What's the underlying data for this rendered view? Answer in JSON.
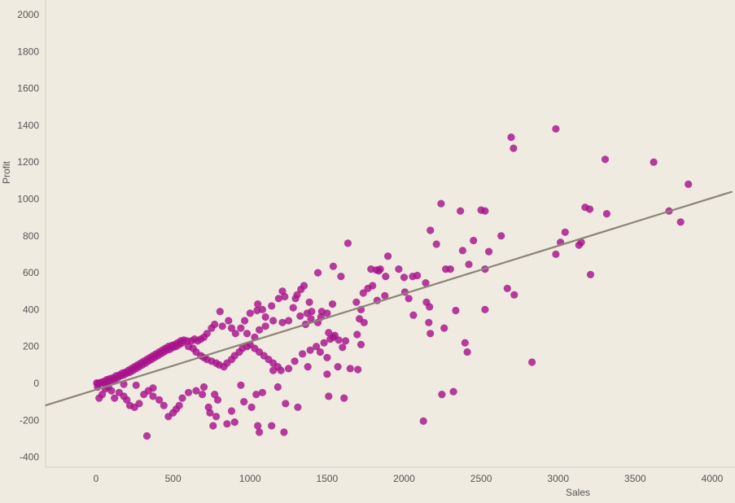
{
  "chart_data": {
    "type": "scatter",
    "title": "",
    "xlabel": "Sales",
    "ylabel": "Profit",
    "xlim": [
      -330,
      4130
    ],
    "ylim": [
      -440,
      2060
    ],
    "x_ticks": [
      0,
      500,
      1000,
      1500,
      2000,
      2500,
      3000,
      3500,
      4000
    ],
    "y_ticks": [
      -400,
      -200,
      0,
      200,
      400,
      600,
      800,
      1000,
      1200,
      1400,
      1600,
      1800,
      2000
    ],
    "grid": false,
    "legend": "none",
    "colors": {
      "background": "#efebe0",
      "point": "#a8128b",
      "trend_line": "#8a8577",
      "axis_line": "#d4d0c4",
      "text": "#555555"
    },
    "trend_line": {
      "x": [
        -330,
        4130
      ],
      "y": [
        -120,
        1040
      ]
    },
    "cluster_note_hidden": true,
    "series": [
      {
        "points": [
          [
            2985,
            1380
          ],
          [
            2695,
            1335
          ],
          [
            2710,
            1275
          ],
          [
            3305,
            1215
          ],
          [
            3620,
            1200
          ],
          [
            3845,
            1080
          ],
          [
            2240,
            975
          ],
          [
            2365,
            935
          ],
          [
            2500,
            940
          ],
          [
            2525,
            935
          ],
          [
            3175,
            955
          ],
          [
            3205,
            945
          ],
          [
            3315,
            920
          ],
          [
            3720,
            935
          ],
          [
            3795,
            875
          ],
          [
            2170,
            830
          ],
          [
            2630,
            800
          ],
          [
            3045,
            820
          ],
          [
            3015,
            765
          ],
          [
            3135,
            750
          ],
          [
            3150,
            765
          ],
          [
            2985,
            700
          ],
          [
            1635,
            760
          ],
          [
            2210,
            755
          ],
          [
            2450,
            775
          ],
          [
            2380,
            720
          ],
          [
            2550,
            715
          ],
          [
            1895,
            690
          ],
          [
            2270,
            620
          ],
          [
            2300,
            620
          ],
          [
            2525,
            620
          ],
          [
            2420,
            645
          ],
          [
            1540,
            635
          ],
          [
            1785,
            620
          ],
          [
            1820,
            615
          ],
          [
            1845,
            620
          ],
          [
            1835,
            610
          ],
          [
            1965,
            620
          ],
          [
            3210,
            590
          ],
          [
            2055,
            580
          ],
          [
            2085,
            585
          ],
          [
            2000,
            575
          ],
          [
            1880,
            580
          ],
          [
            2670,
            515
          ],
          [
            2715,
            480
          ],
          [
            1440,
            600
          ],
          [
            1590,
            580
          ],
          [
            2140,
            545
          ],
          [
            1735,
            490
          ],
          [
            1765,
            515
          ],
          [
            1795,
            530
          ],
          [
            2005,
            495
          ],
          [
            1690,
            440
          ],
          [
            1720,
            400
          ],
          [
            1825,
            450
          ],
          [
            1875,
            475
          ],
          [
            2030,
            460
          ],
          [
            2145,
            440
          ],
          [
            2165,
            415
          ],
          [
            2525,
            400
          ],
          [
            2335,
            395
          ],
          [
            2060,
            370
          ],
          [
            2160,
            330
          ],
          [
            2170,
            270
          ],
          [
            2260,
            300
          ],
          [
            1460,
            360
          ],
          [
            1500,
            380
          ],
          [
            1535,
            430
          ],
          [
            1465,
            390
          ],
          [
            1710,
            350
          ],
          [
            1740,
            330
          ],
          [
            1620,
            230
          ],
          [
            1540,
            250
          ],
          [
            1550,
            260
          ],
          [
            1510,
            275
          ],
          [
            1440,
            330
          ],
          [
            1370,
            380
          ],
          [
            1400,
            390
          ],
          [
            1385,
            440
          ],
          [
            1330,
            510
          ],
          [
            1350,
            530
          ],
          [
            1305,
            480
          ],
          [
            1295,
            460
          ],
          [
            1280,
            410
          ],
          [
            1225,
            470
          ],
          [
            1210,
            500
          ],
          [
            1185,
            460
          ],
          [
            1140,
            420
          ],
          [
            1080,
            400
          ],
          [
            1100,
            360
          ],
          [
            1050,
            430
          ],
          [
            1045,
            395
          ],
          [
            1000,
            380
          ],
          [
            965,
            340
          ],
          [
            1325,
            365
          ],
          [
            1360,
            320
          ],
          [
            1395,
            350
          ],
          [
            1250,
            340
          ],
          [
            1210,
            330
          ],
          [
            1150,
            340
          ],
          [
            1100,
            310
          ],
          [
            1060,
            290
          ],
          [
            1030,
            250
          ],
          [
            980,
            270
          ],
          [
            940,
            300
          ],
          [
            905,
            270
          ],
          [
            880,
            300
          ],
          [
            860,
            340
          ],
          [
            820,
            310
          ],
          [
            805,
            390
          ],
          [
            770,
            320
          ],
          [
            750,
            300
          ],
          [
            720,
            270
          ],
          [
            700,
            250
          ],
          [
            680,
            240
          ],
          [
            660,
            230
          ],
          [
            640,
            240
          ],
          [
            620,
            230
          ],
          [
            590,
            230
          ],
          [
            560,
            220
          ],
          [
            540,
            210
          ],
          [
            520,
            200
          ],
          [
            500,
            195
          ],
          [
            480,
            185
          ],
          [
            460,
            180
          ],
          [
            440,
            170
          ],
          [
            420,
            160
          ],
          [
            400,
            150
          ],
          [
            380,
            140
          ],
          [
            360,
            130
          ],
          [
            340,
            120
          ],
          [
            320,
            110
          ],
          [
            300,
            100
          ],
          [
            280,
            90
          ],
          [
            260,
            80
          ],
          [
            240,
            70
          ],
          [
            220,
            60
          ],
          [
            200,
            55
          ],
          [
            180,
            45
          ],
          [
            160,
            40
          ],
          [
            140,
            30
          ],
          [
            120,
            20
          ],
          [
            100,
            15
          ],
          [
            80,
            10
          ],
          [
            60,
            5
          ],
          [
            40,
            3
          ],
          [
            20,
            0
          ],
          [
            10,
            -2
          ],
          [
            5,
            2
          ],
          [
            30,
            5
          ],
          [
            50,
            10
          ],
          [
            70,
            20
          ],
          [
            90,
            25
          ],
          [
            110,
            30
          ],
          [
            130,
            40
          ],
          [
            150,
            45
          ],
          [
            170,
            55
          ],
          [
            190,
            60
          ],
          [
            210,
            70
          ],
          [
            230,
            80
          ],
          [
            250,
            90
          ],
          [
            270,
            100
          ],
          [
            290,
            110
          ],
          [
            310,
            120
          ],
          [
            330,
            130
          ],
          [
            350,
            140
          ],
          [
            370,
            150
          ],
          [
            390,
            160
          ],
          [
            410,
            170
          ],
          [
            430,
            180
          ],
          [
            450,
            190
          ],
          [
            470,
            200
          ],
          [
            490,
            205
          ],
          [
            510,
            210
          ],
          [
            530,
            220
          ],
          [
            550,
            230
          ],
          [
            570,
            235
          ],
          [
            600,
            200
          ],
          [
            630,
            190
          ],
          [
            650,
            170
          ],
          [
            680,
            150
          ],
          [
            700,
            140
          ],
          [
            720,
            130
          ],
          [
            750,
            120
          ],
          [
            780,
            110
          ],
          [
            800,
            100
          ],
          [
            830,
            90
          ],
          [
            850,
            110
          ],
          [
            880,
            130
          ],
          [
            900,
            150
          ],
          [
            930,
            170
          ],
          [
            950,
            190
          ],
          [
            980,
            200
          ],
          [
            1000,
            210
          ],
          [
            1030,
            190
          ],
          [
            1060,
            170
          ],
          [
            1090,
            150
          ],
          [
            1120,
            130
          ],
          [
            1150,
            110
          ],
          [
            1180,
            90
          ],
          [
            1200,
            70
          ],
          [
            1250,
            80
          ],
          [
            1290,
            120
          ],
          [
            1340,
            160
          ],
          [
            1390,
            180
          ],
          [
            1430,
            200
          ],
          [
            1480,
            220
          ],
          [
            1520,
            240
          ],
          [
            1575,
            235
          ],
          [
            1695,
            265
          ],
          [
            1720,
            210
          ],
          [
            1600,
            195
          ],
          [
            1455,
            170
          ],
          [
            1500,
            140
          ],
          [
            1570,
            90
          ],
          [
            1500,
            50
          ],
          [
            1650,
            80
          ],
          [
            1700,
            75
          ],
          [
            1510,
            -70
          ],
          [
            1610,
            -80
          ],
          [
            1375,
            90
          ],
          [
            1310,
            -130
          ],
          [
            1230,
            -110
          ],
          [
            1180,
            -20
          ],
          [
            1150,
            70
          ],
          [
            1080,
            -50
          ],
          [
            1040,
            -60
          ],
          [
            1010,
            -130
          ],
          [
            1050,
            -230
          ],
          [
            1060,
            -265
          ],
          [
            1220,
            -265
          ],
          [
            940,
            -10
          ],
          [
            960,
            -100
          ],
          [
            880,
            -150
          ],
          [
            850,
            -220
          ],
          [
            790,
            -90
          ],
          [
            770,
            -60
          ],
          [
            730,
            -130
          ],
          [
            740,
            -160
          ],
          [
            780,
            -180
          ],
          [
            700,
            -20
          ],
          [
            690,
            -60
          ],
          [
            650,
            -40
          ],
          [
            600,
            -50
          ],
          [
            560,
            -80
          ],
          [
            540,
            -120
          ],
          [
            520,
            -140
          ],
          [
            500,
            -160
          ],
          [
            470,
            -180
          ],
          [
            440,
            -120
          ],
          [
            410,
            -90
          ],
          [
            370,
            -70
          ],
          [
            340,
            -40
          ],
          [
            310,
            -60
          ],
          [
            280,
            -110
          ],
          [
            250,
            -130
          ],
          [
            220,
            -120
          ],
          [
            200,
            -90
          ],
          [
            180,
            -70
          ],
          [
            150,
            -50
          ],
          [
            120,
            -80
          ],
          [
            100,
            -40
          ],
          [
            80,
            -20
          ],
          [
            60,
            -30
          ],
          [
            40,
            -60
          ],
          [
            20,
            -80
          ],
          [
            10,
            -20
          ],
          [
            330,
            -285
          ],
          [
            760,
            -230
          ],
          [
            900,
            -210
          ],
          [
            1140,
            -230
          ],
          [
            2125,
            -205
          ],
          [
            2245,
            -60
          ],
          [
            2320,
            -45
          ],
          [
            2830,
            115
          ],
          [
            2410,
            170
          ],
          [
            2395,
            220
          ],
          [
            370,
            -25
          ],
          [
            260,
            -10
          ],
          [
            180,
            -5
          ]
        ]
      }
    ]
  }
}
